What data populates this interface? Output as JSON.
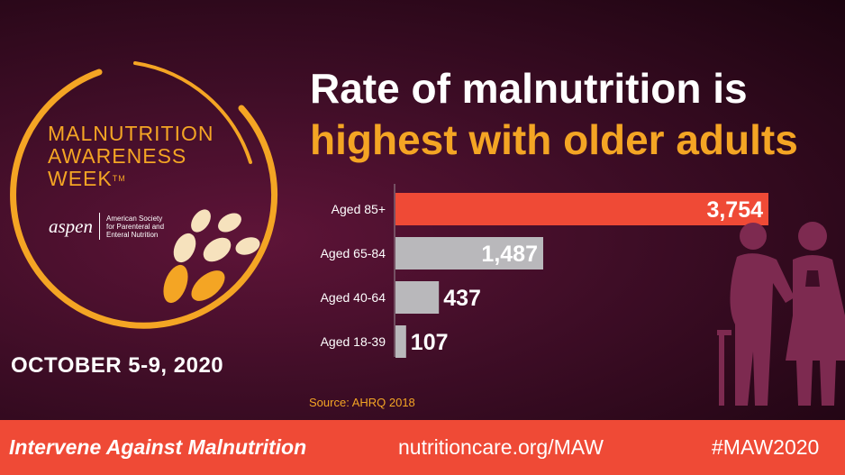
{
  "campaign": {
    "title_lines": [
      "MALNUTRITION",
      "AWARENESS",
      "WEEK"
    ],
    "trademark": "TM",
    "org_logo": "aspen",
    "org_name_lines": [
      "American Society",
      "for Parenteral and",
      "Enteral Nutrition"
    ],
    "dates": "OCTOBER 5-9, 2020"
  },
  "headline": {
    "line1": "Rate of malnutrition is",
    "line2": "highest with older adults"
  },
  "chart_data": {
    "type": "bar",
    "orientation": "horizontal",
    "categories": [
      "Aged 85+",
      "Aged 65-84",
      "Aged 40-64",
      "Aged 18-39"
    ],
    "values": [
      3754,
      1487,
      437,
      107
    ],
    "value_labels": [
      "3,754",
      "1,487",
      "437",
      "107"
    ],
    "title": "",
    "xlabel": "",
    "ylabel": "",
    "xlim": [
      0,
      3754
    ],
    "grid": false,
    "highlight_color": "#ef4a36",
    "bar_color": "#b9b8bb"
  },
  "source": "Source: AHRQ 2018",
  "footer": {
    "tagline": "Intervene Against Malnutrition",
    "url": "nutritioncare.org/MAW",
    "hashtag": "#MAW2020"
  },
  "colors": {
    "accent": "#f4a524",
    "banner": "#ef4a36",
    "background": "#3e0d26"
  },
  "icons": {
    "people": "elderly-couple-icon",
    "wheat": "wheat-grain-icon"
  }
}
